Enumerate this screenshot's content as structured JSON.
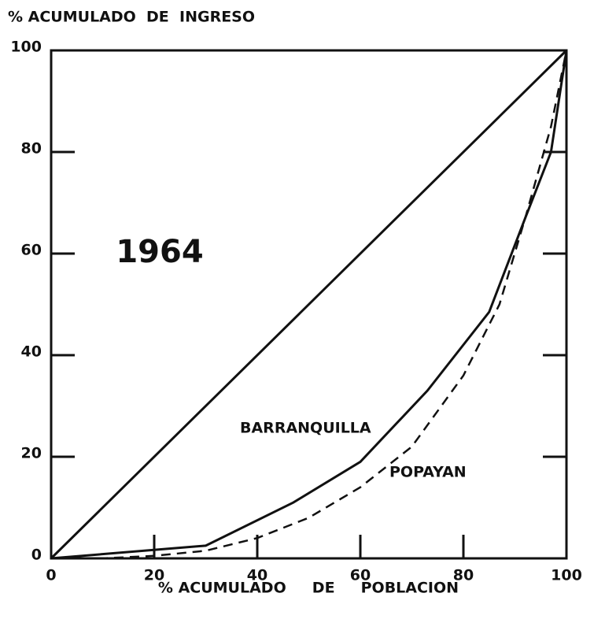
{
  "chart_data": {
    "type": "line",
    "title": "% ACUMULADO  DE  INGRESO",
    "x_label": "% ACUMULADO     DE     POBLACION",
    "annotation": "1964",
    "xlim": [
      0,
      100
    ],
    "ylim": [
      0,
      100
    ],
    "xticks": [
      0,
      20,
      40,
      60,
      80,
      100
    ],
    "yticks": [
      0,
      20,
      40,
      60,
      80,
      100
    ],
    "series": [
      {
        "color": "#111111",
        "dash": "solid",
        "x": [
          0,
          100
        ],
        "values": [
          0,
          100
        ]
      },
      {
        "name": "BARRANQUILLA",
        "color": "#111111",
        "dash": "solid",
        "x": [
          0,
          30,
          47,
          60,
          73,
          85,
          92,
          97,
          100
        ],
        "values": [
          0,
          2.5,
          11,
          19,
          33,
          48.5,
          67,
          80,
          100
        ]
      },
      {
        "name": "POPAYAN",
        "color": "#111111",
        "dash": "dashed",
        "x": [
          0,
          10,
          20,
          30,
          40,
          50,
          60,
          70,
          80,
          87,
          92,
          97,
          100
        ],
        "values": [
          0,
          0,
          0.5,
          1.5,
          4,
          8,
          14,
          22,
          36,
          50,
          67,
          85,
          100
        ]
      }
    ]
  }
}
